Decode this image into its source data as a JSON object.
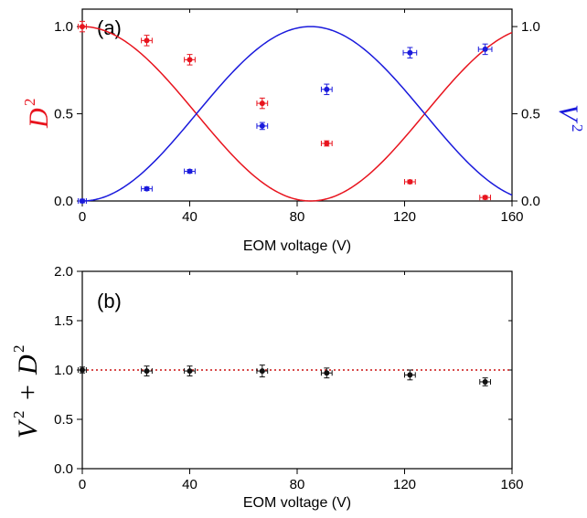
{
  "chart_data": [
    {
      "type": "line",
      "panel_label": "(a)",
      "xlabel": "EOM voltage (V)",
      "ylabel": {
        "symbol": "D",
        "power": "2",
        "color": "#e8141e"
      },
      "ylabel_right": {
        "symbol": "V",
        "power": "2",
        "color": "#1a1adc"
      },
      "xlim": [
        0,
        160
      ],
      "ylim": [
        0,
        1.1
      ],
      "x_ticks": [
        "0",
        "40",
        "80",
        "120",
        "160"
      ],
      "y_ticks": [
        "0.0",
        "0.5",
        "1.0"
      ],
      "y_ticks_right": [
        "0.0",
        "0.5",
        "1.0"
      ],
      "grid": false,
      "series": [
        {
          "color": "#e8141e",
          "marker": "circle",
          "points": [
            {
              "x": 0,
              "y": 1.0,
              "xerr": 1.5,
              "yerr": 0.03
            },
            {
              "x": 24,
              "y": 0.92,
              "xerr": 2,
              "yerr": 0.03
            },
            {
              "x": 40,
              "y": 0.81,
              "xerr": 2,
              "yerr": 0.03
            },
            {
              "x": 67,
              "y": 0.56,
              "xerr": 2,
              "yerr": 0.03
            },
            {
              "x": 91,
              "y": 0.33,
              "xerr": 2,
              "yerr": 0.015
            },
            {
              "x": 122,
              "y": 0.11,
              "xerr": 2,
              "yerr": 0.01
            },
            {
              "x": 150,
              "y": 0.02,
              "xerr": 2,
              "yerr": 0.01
            }
          ],
          "fit_curve": "cos2",
          "fit_period_V": 170
        },
        {
          "color": "#1a1adc",
          "marker": "circle",
          "points": [
            {
              "x": 0,
              "y": 0.0,
              "xerr": 1.5,
              "yerr": 0.01
            },
            {
              "x": 24,
              "y": 0.07,
              "xerr": 2,
              "yerr": 0.01
            },
            {
              "x": 40,
              "y": 0.17,
              "xerr": 2,
              "yerr": 0.01
            },
            {
              "x": 67,
              "y": 0.43,
              "xerr": 2,
              "yerr": 0.02
            },
            {
              "x": 91,
              "y": 0.64,
              "xerr": 2,
              "yerr": 0.03
            },
            {
              "x": 122,
              "y": 0.85,
              "xerr": 2.5,
              "yerr": 0.03
            },
            {
              "x": 150,
              "y": 0.87,
              "xerr": 2.5,
              "yerr": 0.03
            }
          ],
          "fit_curve": "sin2",
          "fit_period_V": 170
        }
      ]
    },
    {
      "type": "scatter",
      "panel_label": "(b)",
      "xlabel": "EOM voltage (V)",
      "ylabel": {
        "a": "V",
        "a_power": "2",
        "op": "+",
        "b": "D",
        "b_power": "2"
      },
      "xlim": [
        0,
        160
      ],
      "ylim": [
        0,
        2.0
      ],
      "x_ticks": [
        "0",
        "40",
        "80",
        "120",
        "160"
      ],
      "y_ticks": [
        "0.0",
        "0.5",
        "1.0",
        "1.5",
        "2.0"
      ],
      "grid": false,
      "reference_line": {
        "y": 1.0,
        "style": "dotted",
        "color": "#cc1111"
      },
      "series": [
        {
          "color": "#111111",
          "marker": "circle",
          "points": [
            {
              "x": 0,
              "y": 1.0,
              "xerr": 1.5,
              "yerr": 0.03
            },
            {
              "x": 24,
              "y": 0.99,
              "xerr": 2,
              "yerr": 0.05
            },
            {
              "x": 40,
              "y": 0.99,
              "xerr": 2,
              "yerr": 0.05
            },
            {
              "x": 67,
              "y": 0.99,
              "xerr": 2,
              "yerr": 0.06
            },
            {
              "x": 91,
              "y": 0.97,
              "xerr": 2,
              "yerr": 0.05
            },
            {
              "x": 122,
              "y": 0.95,
              "xerr": 2,
              "yerr": 0.05
            },
            {
              "x": 150,
              "y": 0.88,
              "xerr": 2,
              "yerr": 0.04
            }
          ]
        }
      ]
    }
  ]
}
